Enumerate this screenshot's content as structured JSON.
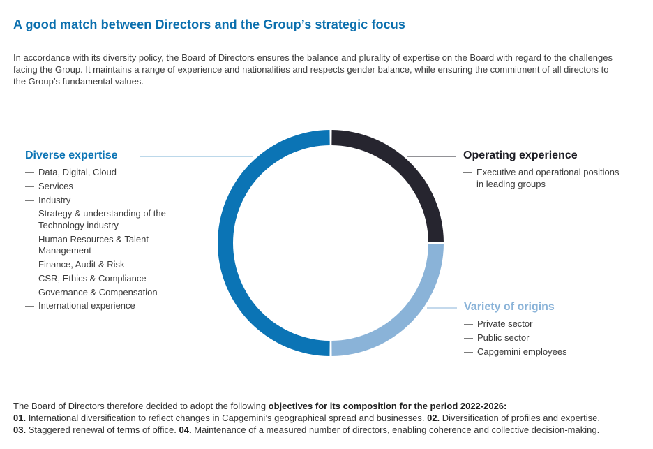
{
  "title": "A good match between Directors and the Group’s strategic focus",
  "intro": "In accordance with its diversity policy, the Board of Directors ensures the balance and plurality of expertise on the Board with regard to the challenges facing the Group. It maintains a range of experience and nationalities and respects gender balance, while ensuring the commitment of all directors to the Group’s fundamental values.",
  "colors": {
    "accent": "#0b6fae",
    "diverse_expertise": "#0b74b5",
    "operating_experience": "#26252f",
    "variety_of_origins": "#8ab3d8"
  },
  "diverse_expertise": {
    "title": "Diverse expertise",
    "items": [
      "Data, Digital, Cloud",
      "Services",
      "Industry",
      "Strategy & understanding of the Technology industry",
      "Human Resources & Talent Management",
      "Finance, Audit & Risk",
      "CSR, Ethics & Compliance",
      "Governance & Compensation",
      "International experience"
    ]
  },
  "operating_experience": {
    "title": "Operating experience",
    "items": [
      "Executive and operational positions in leading groups"
    ]
  },
  "variety_of_origins": {
    "title": "Variety of origins",
    "items": [
      "Private sector",
      "Public sector",
      "Capgemini employees"
    ]
  },
  "chart_data": {
    "type": "pie",
    "variant": "donut",
    "categories": [
      "Operating experience",
      "Variety of origins",
      "Diverse expertise"
    ],
    "values": [
      25,
      25,
      50
    ],
    "colors": [
      "#26252f",
      "#8ab3d8",
      "#0b74b5"
    ]
  },
  "footer": {
    "lead": "The Board of Directors therefore decided to adopt the following ",
    "lead_bold": "objectives for its composition for the period 2022-2026:",
    "o1_num": "01.",
    "o1_text": " International diversification to reflect changes in Capgemini’s geographical spread and businesses. ",
    "o2_num": "02.",
    "o2_text": " Diversification of profiles and expertise.",
    "o3_num": "03.",
    "o3_text": " Staggered renewal of terms of office. ",
    "o4_num": "04.",
    "o4_text": " Maintenance of a measured number of directors, enabling coherence and collective decision-making."
  }
}
